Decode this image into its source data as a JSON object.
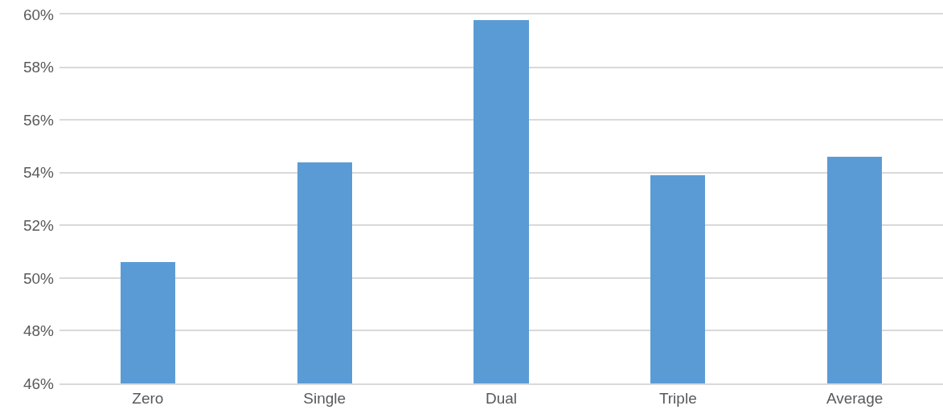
{
  "chart_data": {
    "type": "bar",
    "categories": [
      "Zero",
      "Single",
      "Dual",
      "Triple",
      "Average"
    ],
    "values": [
      50.6,
      54.4,
      59.8,
      53.9,
      54.6
    ],
    "color": "#5b9bd5",
    "ylim": [
      46,
      60
    ],
    "yticks": [
      {
        "value": 46,
        "label": "46%"
      },
      {
        "value": 48,
        "label": "48%"
      },
      {
        "value": 50,
        "label": "50%"
      },
      {
        "value": 52,
        "label": "52%"
      },
      {
        "value": 54,
        "label": "54%"
      },
      {
        "value": 56,
        "label": "56%"
      },
      {
        "value": 58,
        "label": "58%"
      },
      {
        "value": 60,
        "label": "60%"
      }
    ],
    "grid": "y"
  }
}
